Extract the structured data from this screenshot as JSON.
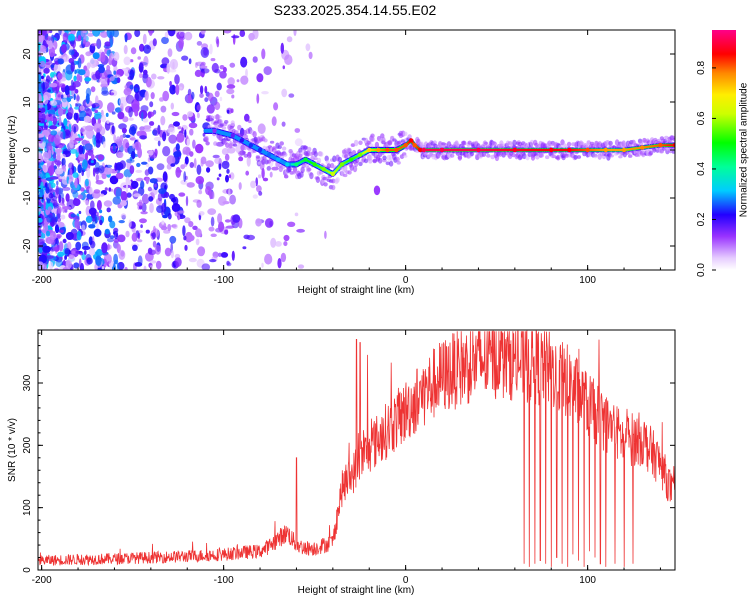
{
  "title": "S233.2025.354.14.55.E02",
  "chart_data": [
    {
      "type": "heatmap",
      "name": "spectrogram",
      "xlabel": "Height of straight line (km)",
      "ylabel": "Frequency (Hz)",
      "xlim": [
        -202,
        148
      ],
      "ylim": [
        -25,
        25
      ],
      "xticks": [
        -200,
        -100,
        0,
        100
      ],
      "xtick_labels": [
        "-200",
        "-100",
        "0",
        "100"
      ],
      "yticks": [
        -20,
        -10,
        0,
        10,
        20
      ],
      "ytick_labels": [
        "-20",
        "-10",
        "0",
        "10",
        "20"
      ],
      "colorbar": {
        "label": "Normalized spectral amplitude",
        "range": [
          0.0,
          0.95
        ],
        "ticks": [
          0.0,
          0.2,
          0.4,
          0.6,
          0.8
        ],
        "tick_labels": [
          "0.0",
          "0.2",
          "0.4",
          "0.6",
          "0.8"
        ]
      },
      "ridge": {
        "x": [
          -105,
          -95,
          -90,
          -85,
          -80,
          -75,
          -70,
          -65,
          -60,
          -55,
          -50,
          -45,
          -40,
          -35,
          -30,
          -25,
          -20,
          -15,
          -10,
          -5,
          0,
          3,
          5,
          8,
          10,
          20,
          40,
          60,
          80,
          90,
          100,
          110,
          120,
          130,
          140,
          148
        ],
        "y": [
          4,
          3,
          2,
          1,
          0,
          -1,
          -2,
          -3,
          -3,
          -2,
          -3,
          -4,
          -5,
          -3,
          -2,
          -1,
          0,
          0,
          0,
          0,
          1,
          2,
          1,
          0,
          0,
          0,
          0,
          0,
          0,
          0,
          0,
          0,
          0,
          0.5,
          1,
          1
        ],
        "amplitude": [
          0.15,
          0.18,
          0.22,
          0.25,
          0.25,
          0.28,
          0.32,
          0.35,
          0.45,
          0.5,
          0.55,
          0.6,
          0.65,
          0.6,
          0.55,
          0.6,
          0.75,
          0.8,
          0.85,
          0.85,
          0.85,
          0.9,
          0.85,
          0.9,
          0.95,
          0.95,
          0.95,
          0.92,
          0.9,
          0.9,
          0.85,
          0.8,
          0.8,
          0.82,
          0.85,
          0.9
        ]
      }
    },
    {
      "type": "line",
      "name": "snr",
      "xlabel": "Height of straight line (km)",
      "ylabel": "SNR (10 * v/v)",
      "xlim": [
        -202,
        148
      ],
      "ylim": [
        0,
        385
      ],
      "xticks": [
        -200,
        -100,
        0,
        100
      ],
      "xtick_labels": [
        "-200",
        "-100",
        "0",
        "100"
      ],
      "yticks": [
        0,
        100,
        200,
        300
      ],
      "ytick_labels": [
        "0",
        "100",
        "200",
        "300"
      ],
      "color": "#ee3333",
      "envelope": {
        "x": [
          -202,
          -180,
          -160,
          -140,
          -120,
          -100,
          -90,
          -80,
          -75,
          -70,
          -65,
          -60,
          -55,
          -50,
          -45,
          -40,
          -35,
          -30,
          -25,
          -20,
          -15,
          -10,
          -5,
          0,
          10,
          20,
          30,
          40,
          50,
          60,
          70,
          80,
          90,
          100,
          110,
          120,
          130,
          140,
          148
        ],
        "y": [
          15,
          17,
          18,
          20,
          22,
          25,
          28,
          30,
          38,
          50,
          60,
          40,
          35,
          35,
          40,
          45,
          130,
          150,
          175,
          195,
          210,
          225,
          240,
          255,
          285,
          310,
          325,
          335,
          340,
          338,
          330,
          320,
          300,
          265,
          235,
          210,
          210,
          170,
          115
        ]
      },
      "spikes": {
        "x": [
          -60,
          -27,
          -25,
          -21,
          65,
          68,
          71,
          74,
          77,
          80,
          83,
          86,
          89,
          92,
          95,
          98,
          101,
          104,
          107,
          110,
          115,
          120,
          125
        ],
        "y": [
          180,
          370,
          365,
          345,
          10,
          5,
          10,
          15,
          10,
          5,
          20,
          10,
          5,
          25,
          15,
          5,
          30,
          20,
          10,
          5,
          10,
          5,
          10
        ]
      }
    }
  ]
}
